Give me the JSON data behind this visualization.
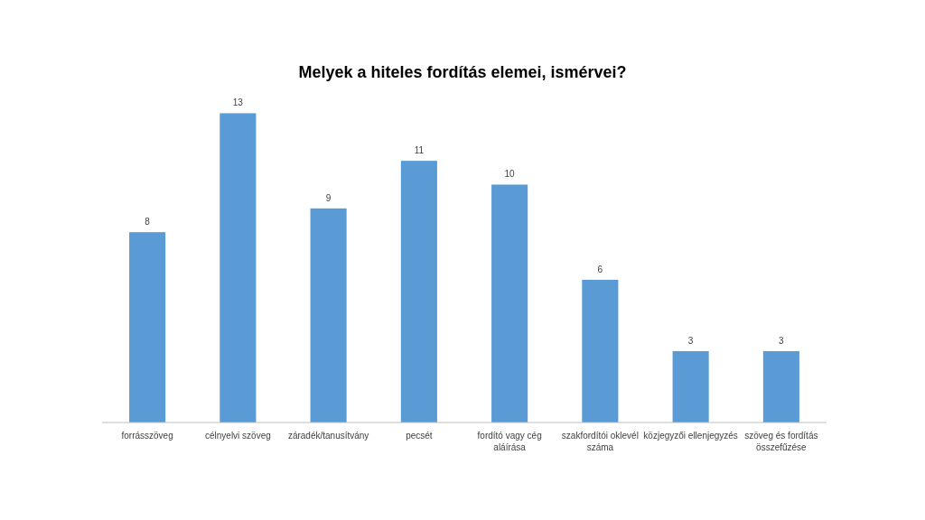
{
  "chart_data": {
    "type": "bar",
    "title": "Melyek a hiteles fordítás elemei, ismérvei?",
    "categories": [
      "forrásszöveg",
      "célnyelvi szöveg",
      "záradék/tanusítvány",
      "pecsét",
      "fordító vagy cég aláírása",
      "szakfordítói oklevél száma",
      "közjegyzői ellenjegyzés",
      "szöveg és fordítás összefűzése"
    ],
    "values": [
      8,
      13,
      9,
      11,
      10,
      6,
      3,
      3
    ],
    "color": "#5b9bd5",
    "data_labels": true
  }
}
